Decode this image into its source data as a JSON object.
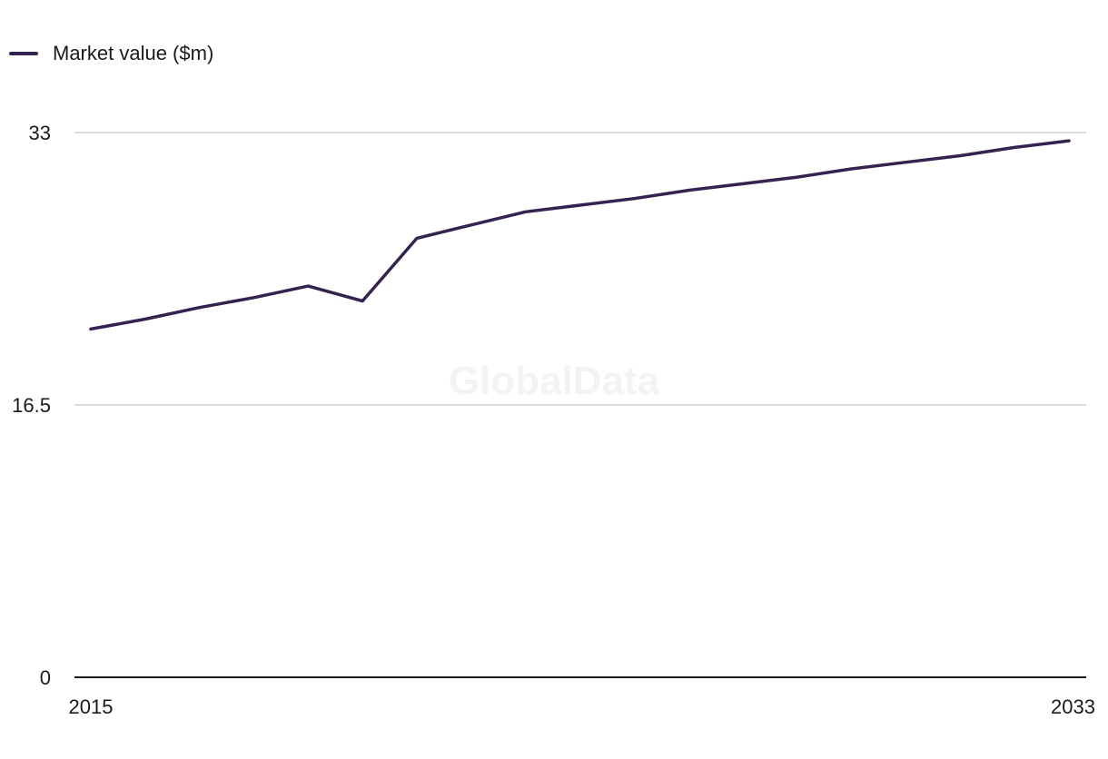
{
  "legend": {
    "label": "Market value ($m)",
    "color": "#35234f"
  },
  "watermark": "GlobalData",
  "colors": {
    "line": "#35234f",
    "grid": "#d0d0d0",
    "axis": "#1b1b1b"
  },
  "chart_data": {
    "type": "line",
    "series": [
      {
        "name": "Market value ($m)",
        "x": [
          2015,
          2016,
          2017,
          2018,
          2019,
          2020,
          2021,
          2022,
          2023,
          2024,
          2025,
          2026,
          2027,
          2028,
          2029,
          2030,
          2031,
          2032,
          2033
        ],
        "values": [
          21.1,
          21.7,
          22.4,
          23.0,
          23.7,
          22.8,
          26.6,
          27.4,
          28.2,
          28.6,
          29.0,
          29.5,
          29.9,
          30.3,
          30.8,
          31.2,
          31.6,
          32.1,
          32.5
        ]
      }
    ],
    "x_ticks": [
      "2015",
      "2033"
    ],
    "y_ticks": [
      "0",
      "16.5",
      "33"
    ],
    "xlim": [
      2015,
      2033
    ],
    "ylim": [
      0,
      33
    ],
    "grid": true,
    "legend_position": "top-left"
  }
}
